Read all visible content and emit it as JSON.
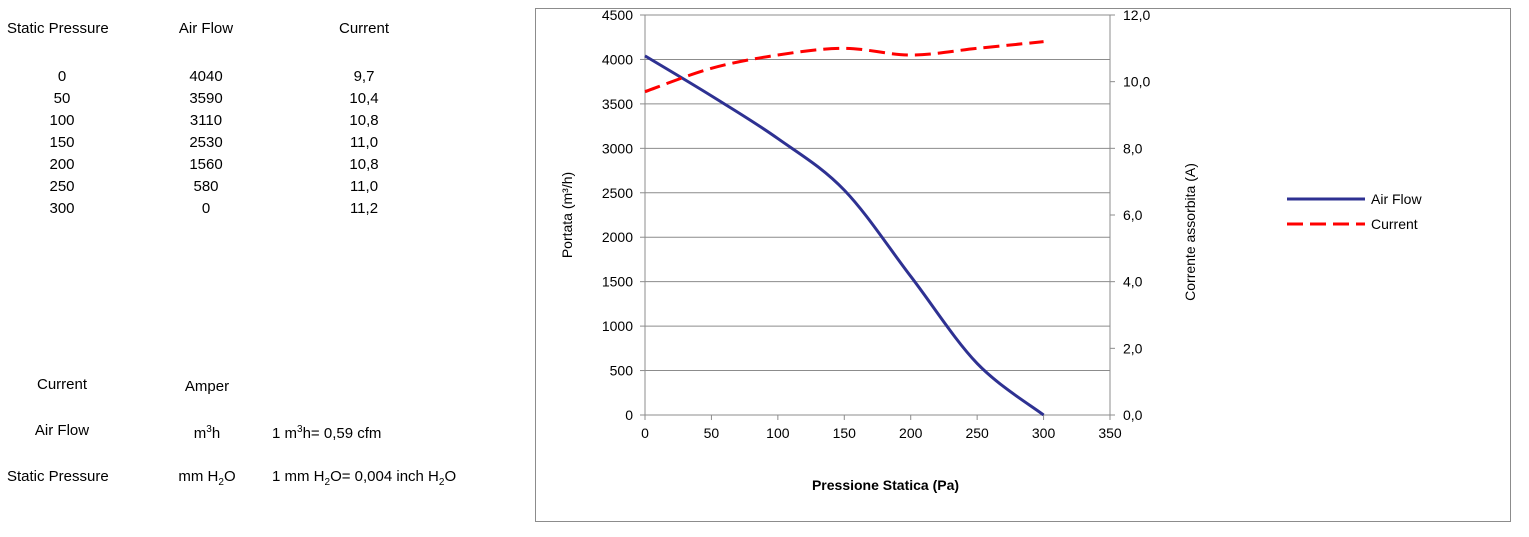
{
  "table": {
    "headers": [
      "Static Pressure",
      "Air Flow",
      "Current"
    ],
    "rows": [
      [
        "0",
        "4040",
        "9,7"
      ],
      [
        "50",
        "3590",
        "10,4"
      ],
      [
        "100",
        "3110",
        "10,8"
      ],
      [
        "150",
        "2530",
        "11,0"
      ],
      [
        "200",
        "1560",
        "10,8"
      ],
      [
        "250",
        "580",
        "11,0"
      ],
      [
        "300",
        "0",
        "11,2"
      ]
    ]
  },
  "units": {
    "current": {
      "label": "Current",
      "unit": "Amper"
    },
    "air_flow": {
      "label": "Air Flow",
      "unit_base": "m",
      "unit_sup": "3",
      "unit_tail": "h",
      "conv_a": "1 m",
      "conv_sup": "3",
      "conv_b": "h= 0,59 cfm"
    },
    "static_pressure": {
      "label": "Static Pressure",
      "unit_base": "mm H",
      "unit_sub": "2",
      "unit_tail": "O",
      "conv_a": "1 mm H",
      "conv_sub1": "2",
      "conv_b": "O= 0,004 inch H",
      "conv_sub2": "2",
      "conv_c": "O"
    }
  },
  "chart_data": {
    "type": "line",
    "title": "",
    "xlabel": "Pressione Statica (Pa)",
    "ylabel": "Portata (m³/h)",
    "y2label": "Corrente assorbita (A)",
    "xlim": [
      0,
      350
    ],
    "ylim": [
      0,
      4500
    ],
    "y2lim": [
      0,
      12
    ],
    "x_ticks": [
      "0",
      "50",
      "100",
      "150",
      "200",
      "250",
      "300",
      "350"
    ],
    "y_ticks": [
      "0",
      "500",
      "1000",
      "1500",
      "2000",
      "2500",
      "3000",
      "3500",
      "4000",
      "4500"
    ],
    "y2_ticks": [
      "0,0",
      "2,0",
      "4,0",
      "6,0",
      "8,0",
      "10,0",
      "12,0"
    ],
    "grid": true,
    "legend_position": "right",
    "x": [
      0,
      50,
      100,
      150,
      200,
      250,
      300
    ],
    "series": [
      {
        "name": "Air Flow",
        "axis": "left",
        "color": "#2e3192",
        "dash": "solid",
        "values": [
          4040,
          3590,
          3110,
          2530,
          1560,
          580,
          0
        ]
      },
      {
        "name": "Current",
        "axis": "right",
        "color": "#ff0000",
        "dash": "dashed",
        "values": [
          9.7,
          10.4,
          10.8,
          11.0,
          10.8,
          11.0,
          11.2
        ]
      }
    ]
  }
}
